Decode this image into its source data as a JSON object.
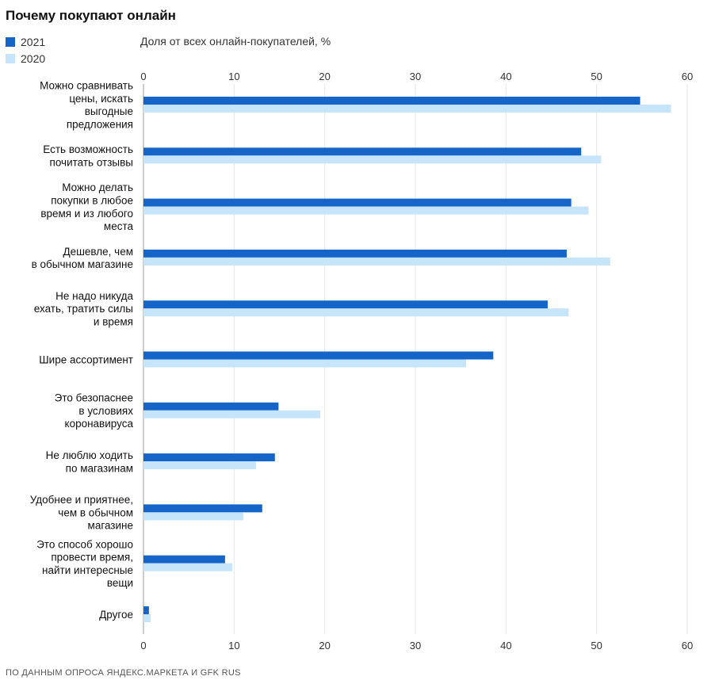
{
  "chart_data": {
    "type": "bar",
    "orientation": "horizontal",
    "title": "Почему покупают онлайн",
    "xlabel": "Доля от всех онлайн-покупателей, %",
    "ylabel": "",
    "xlim": [
      0,
      60
    ],
    "ticks": [
      0,
      10,
      20,
      30,
      40,
      50,
      60
    ],
    "grid": true,
    "legend_position": "top-left",
    "categories": [
      [
        "Можно сравнивать",
        "цены, искать",
        "выгодные",
        "предложения"
      ],
      [
        "Есть возможность",
        "почитать отзывы"
      ],
      [
        "Можно делать",
        "покупки в любое",
        "время и из любого",
        "места"
      ],
      [
        "Дешевле, чем",
        "в обычном магазине"
      ],
      [
        "Не надо никуда",
        "ехать, тратить силы",
        "и время"
      ],
      [
        "Шире ассортимент"
      ],
      [
        "Это безопаснее",
        "в условиях",
        "коронавируса"
      ],
      [
        "Не люблю ходить",
        "по магазинам"
      ],
      [
        "Удобнее и приятнее,",
        "чем в обычном",
        "магазине"
      ],
      [
        "Это способ хорошо",
        "провести время,",
        "найти интересные",
        "вещи"
      ],
      [
        "Другое"
      ]
    ],
    "series": [
      {
        "name": "2021",
        "color": "#1565c8",
        "values": [
          54.8,
          48.3,
          47.2,
          46.7,
          44.6,
          38.6,
          14.9,
          14.5,
          13.1,
          9.0,
          0.6
        ]
      },
      {
        "name": "2020",
        "color": "#c6e4fa",
        "values": [
          58.2,
          50.5,
          49.1,
          51.5,
          46.9,
          35.6,
          19.5,
          12.4,
          11.0,
          9.8,
          0.8
        ]
      }
    ]
  },
  "source": "ПО ДАННЫМ ОПРОСА ЯНДЕКС.МАРКЕТА И GFK RUS"
}
